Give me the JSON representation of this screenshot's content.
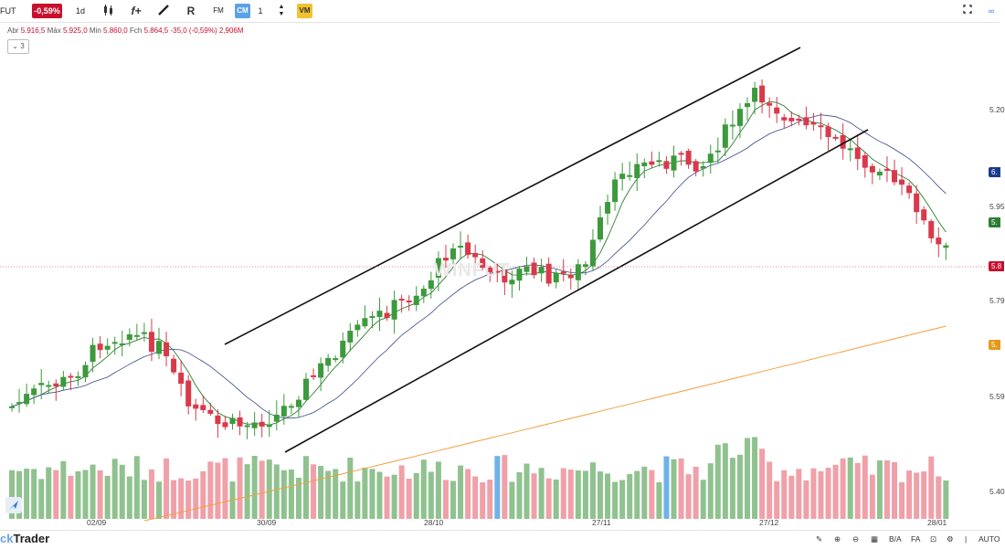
{
  "toolbar": {
    "symbol": "FUT",
    "change": "-0,59%",
    "interval": "1d",
    "fx": "f+",
    "indicator_r": "R",
    "fm": "FM",
    "cm": "CM",
    "cm_value": "1",
    "vm": "VM",
    "icons": [
      "candles-icon",
      "pencil-icon",
      "fullscreen-icon",
      "link-icon"
    ]
  },
  "info": {
    "abr_label": "Abr",
    "abr": "5.916,5",
    "max_label": "Máx",
    "max": "5.925,0",
    "min_label": "Min",
    "min": "5.860,0",
    "fch_label": "Fch",
    "fch": "5.864,5 -35,0 (-0,59%)",
    "vol": "2,906M",
    "study_count": "3"
  },
  "chart_data": {
    "type": "candlestick",
    "dates_axis": [
      "02/09",
      "30/09",
      "28/10",
      "27/11",
      "27/12",
      "28/01"
    ],
    "price_axis": [
      "5.20",
      "5.95",
      "5.79",
      "5.59",
      "5.40"
    ],
    "price_tags": [
      {
        "text": "6.",
        "color": "#1a3a8c"
      },
      {
        "text": "5.",
        "color": "#2e7d32"
      },
      {
        "text": "5.8",
        "color": "#c8102e"
      },
      {
        "text": "5.",
        "color": "#e59a1a"
      }
    ],
    "up_color": "#3c9a3c",
    "down_color": "#d9394a",
    "volume_up_color": "#8fc28f",
    "volume_down_color": "#f0a0a8",
    "volume_highlight_color": "#6fb2e8",
    "last_price_line_color": "#e06070",
    "channel_lines": true,
    "moving_averages": [
      "short-green",
      "medium-navy",
      "long-orange"
    ]
  },
  "bottombar": {
    "logo_prefix": "ck",
    "logo_suffix": "Trader",
    "items": [
      "B/A",
      "FA",
      "AUTO"
    ]
  }
}
